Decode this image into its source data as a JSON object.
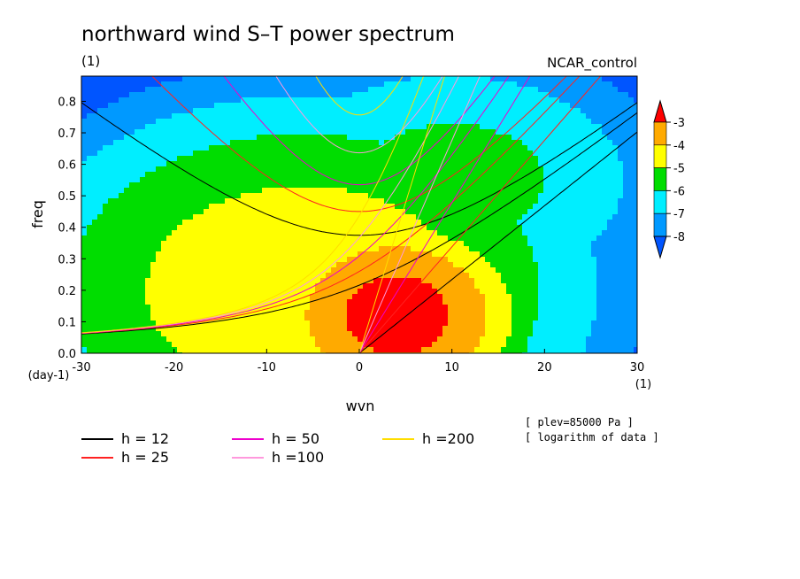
{
  "chart_data": {
    "type": "heatmap",
    "title": "northward wind S–T power spectrum",
    "left_subtitle": "(1)",
    "right_subtitle": "NCAR_control",
    "xlabel": "wvn",
    "ylabel": "freq",
    "x_units": "(1)",
    "y_units": "(day-1)",
    "xlim": [
      -30,
      30
    ],
    "ylim": [
      0.0,
      0.88
    ],
    "xticks": [
      -30,
      -20,
      -10,
      0,
      10,
      20,
      30
    ],
    "yticks": [
      0.0,
      0.1,
      0.2,
      0.3,
      0.4,
      0.5,
      0.6,
      0.7,
      0.8
    ],
    "contour_levels": [
      -8,
      -7,
      -6,
      -5,
      -4,
      -3
    ],
    "colorbar": {
      "labels": [
        "-3",
        "-4",
        "-5",
        "-6",
        "-7",
        "-8"
      ],
      "colors": [
        "#0055ff",
        "#0099ff",
        "#00eeff",
        "#00dd00",
        "#ffff00",
        "#ffaa00",
        "#ff0000"
      ]
    },
    "field_description": "log power; maximum near wvn 0..10, freq 0..0.2, decreasing outward",
    "dispersion_curves": [
      {
        "name": "h = 12",
        "h": 12,
        "color": "#000000"
      },
      {
        "name": "h = 25",
        "h": 25,
        "color": "#ff2222"
      },
      {
        "name": "h = 50",
        "h": 50,
        "color": "#ee00cc"
      },
      {
        "name": "h =100",
        "h": 100,
        "color": "#ff99dd"
      },
      {
        "name": "h =200",
        "h": 200,
        "color": "#ffdd00"
      }
    ],
    "annotations": [
      "[ plev=85000 Pa ]",
      "[ logarithm of data ]"
    ]
  }
}
